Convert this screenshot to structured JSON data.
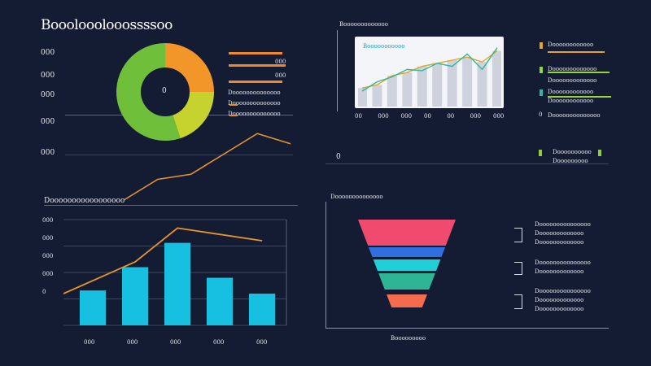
{
  "dashboard": {
    "title": "Booolooolooossssoo"
  },
  "donut_panel": {
    "center_label": "0",
    "left_ticks": [
      "000",
      "000",
      "000",
      "000",
      "000"
    ],
    "legend_bars": [
      {
        "label": "000",
        "color": "#f0892c"
      },
      {
        "label": "000",
        "color": "#f0892c"
      },
      {
        "label": "000",
        "color": "#f0892c"
      }
    ],
    "legend_lines": [
      "Doooooooooooooo",
      "Doooooooooooooo",
      "Doooooooooooooo"
    ],
    "colors": {
      "orange": "#f2962a",
      "yellow": "#c6d32f",
      "green": "#6fbf3a"
    }
  },
  "mini_chart": {
    "title": "Booooooooooooo",
    "subtitle": "Booooooooooo",
    "x_ticks": [
      "00",
      "000",
      "000",
      "00",
      "00",
      "000",
      "000"
    ],
    "legend": [
      {
        "label": "Doooooooooooo",
        "color": "#e7a321"
      },
      {
        "label": "Dooooooooooooo",
        "color": "#9bd13a"
      },
      {
        "label": "Doooooooooooo",
        "color": "#2fb89e"
      },
      {
        "label": "Doooooooooooooo",
        "color": "#c9d0da"
      }
    ],
    "footer_legend": {
      "label": "Doooooooooo",
      "sub": "Dooooooooo",
      "color": "#8fcf3a"
    },
    "marker": "0"
  },
  "bar_panel": {
    "title": "Dooooooooooooooooo",
    "y_ticks": [
      "000",
      "000",
      "000",
      "000",
      "0"
    ],
    "x_ticks": [
      "000",
      "000",
      "000",
      "000",
      "000"
    ]
  },
  "funnel_panel": {
    "title": "Doooooooooooooo",
    "footer": "Booooooooo",
    "legend": [
      {
        "line1": "Dooooooooooooooo",
        "line2": "Dooooooooooooo"
      },
      {
        "line1": "Dooooooooooooooo",
        "line2": "Dooooooooooooo"
      },
      {
        "line1": "Dooooooooooooooo",
        "line2": "Dooooooooooooo"
      }
    ],
    "colors": [
      "#f04a6e",
      "#2f6fe0",
      "#1fd0d6",
      "#2db596",
      "#f56b4e"
    ]
  },
  "chart_data": [
    {
      "type": "pie",
      "subtype": "donut",
      "slices": [
        {
          "label": "orange",
          "value": 25,
          "color": "#f2962a"
        },
        {
          "label": "yellow",
          "value": 20,
          "color": "#c6d32f"
        },
        {
          "label": "green",
          "value": 55,
          "color": "#6fbf3a"
        }
      ]
    },
    {
      "type": "line",
      "note_series": "rising trend line in donut panel",
      "x": [
        0,
        1,
        2,
        3,
        4,
        5
      ],
      "series": [
        {
          "color": "#e8942e",
          "values": [
            10,
            30,
            35,
            55,
            75,
            65
          ]
        }
      ]
    },
    {
      "type": "bar",
      "categories": [
        "000",
        "000",
        "000",
        "000",
        "000"
      ],
      "series": [
        {
          "color": "#17bfe0",
          "values": [
            33,
            55,
            78,
            45,
            30
          ]
        },
        {
          "color": "#e8942e",
          "type": "line",
          "values": [
            30,
            60,
            92,
            86,
            80
          ]
        }
      ],
      "ylim": [
        0,
        100
      ]
    },
    {
      "type": "area",
      "series": [
        {
          "color": "#e7a321",
          "values": [
            30,
            35,
            50,
            55,
            65,
            70,
            75,
            80,
            72,
            90
          ]
        },
        {
          "color": "#2fb89e",
          "values": [
            25,
            40,
            48,
            60,
            58,
            70,
            65,
            85,
            60,
            95
          ]
        }
      ]
    },
    {
      "type": "funnel",
      "values": [
        100,
        75,
        58,
        40,
        25
      ],
      "colors": [
        "#f04a6e",
        "#2f6fe0",
        "#1fd0d6",
        "#2db596",
        "#f56b4e"
      ]
    }
  ]
}
